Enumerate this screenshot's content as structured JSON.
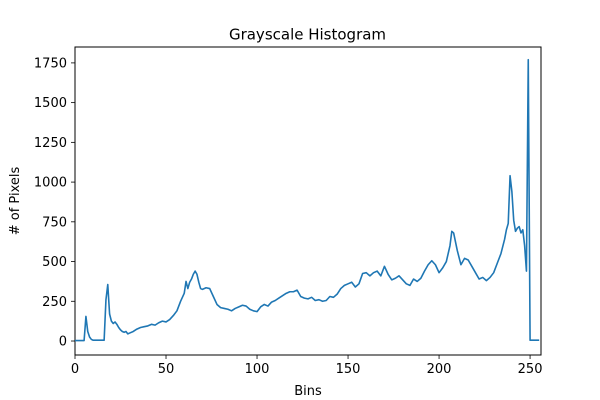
{
  "chart_data": {
    "type": "line",
    "title": "Grayscale Histogram",
    "xlabel": "Bins",
    "ylabel": "# of Pixels",
    "xlim": [
      0,
      256
    ],
    "ylim": [
      -88,
      1850
    ],
    "xticks": [
      "0",
      "50",
      "100",
      "150",
      "200",
      "250"
    ],
    "yticks": [
      "0",
      "250",
      "500",
      "750",
      "1000",
      "1250",
      "1500",
      "1750"
    ],
    "grid": false,
    "series": [
      {
        "color": "#1f77b4",
        "x": [
          0,
          1,
          2,
          3,
          4,
          5,
          6,
          7,
          8,
          9,
          10,
          11,
          12,
          13,
          14,
          15,
          16,
          17,
          18,
          19,
          20,
          21,
          22,
          23,
          24,
          25,
          26,
          27,
          28,
          29,
          30,
          32,
          34,
          36,
          38,
          40,
          42,
          44,
          46,
          48,
          50,
          52,
          54,
          56,
          58,
          60,
          61,
          62,
          63,
          64,
          65,
          66,
          67,
          68,
          69,
          70,
          72,
          74,
          76,
          78,
          80,
          82,
          84,
          86,
          88,
          90,
          92,
          94,
          96,
          98,
          100,
          102,
          104,
          106,
          108,
          110,
          112,
          114,
          116,
          118,
          120,
          122,
          124,
          126,
          128,
          130,
          132,
          134,
          136,
          138,
          140,
          142,
          144,
          146,
          148,
          150,
          152,
          154,
          156,
          158,
          160,
          162,
          164,
          166,
          168,
          170,
          172,
          174,
          176,
          178,
          180,
          182,
          184,
          186,
          188,
          190,
          192,
          194,
          196,
          198,
          200,
          202,
          204,
          206,
          207,
          208,
          210,
          212,
          214,
          216,
          218,
          220,
          222,
          224,
          226,
          228,
          230,
          232,
          234,
          236,
          237,
          238,
          239,
          240,
          241,
          242,
          243,
          244,
          245,
          246,
          247,
          248,
          249,
          250,
          252,
          255
        ],
        "y": [
          3,
          3,
          3,
          3,
          3,
          3,
          155,
          60,
          25,
          10,
          5,
          5,
          5,
          5,
          5,
          5,
          5,
          260,
          355,
          170,
          125,
          110,
          120,
          105,
          85,
          70,
          60,
          55,
          60,
          45,
          50,
          60,
          75,
          85,
          90,
          95,
          105,
          100,
          115,
          125,
          120,
          135,
          160,
          190,
          250,
          300,
          375,
          330,
          370,
          390,
          420,
          440,
          420,
          370,
          330,
          325,
          335,
          330,
          280,
          230,
          210,
          205,
          200,
          190,
          205,
          215,
          225,
          220,
          200,
          190,
          185,
          215,
          230,
          220,
          245,
          255,
          270,
          285,
          300,
          310,
          310,
          320,
          280,
          270,
          265,
          275,
          255,
          260,
          250,
          255,
          280,
          275,
          295,
          330,
          350,
          360,
          370,
          340,
          360,
          425,
          430,
          410,
          430,
          440,
          410,
          470,
          420,
          385,
          395,
          410,
          385,
          360,
          350,
          390,
          375,
          395,
          440,
          480,
          505,
          480,
          430,
          460,
          500,
          600,
          690,
          680,
          570,
          480,
          520,
          510,
          470,
          430,
          390,
          400,
          380,
          400,
          430,
          490,
          550,
          640,
          700,
          740,
          1040,
          940,
          760,
          690,
          710,
          720,
          680,
          700,
          600,
          440,
          1770,
          5,
          5,
          5
        ]
      }
    ]
  }
}
